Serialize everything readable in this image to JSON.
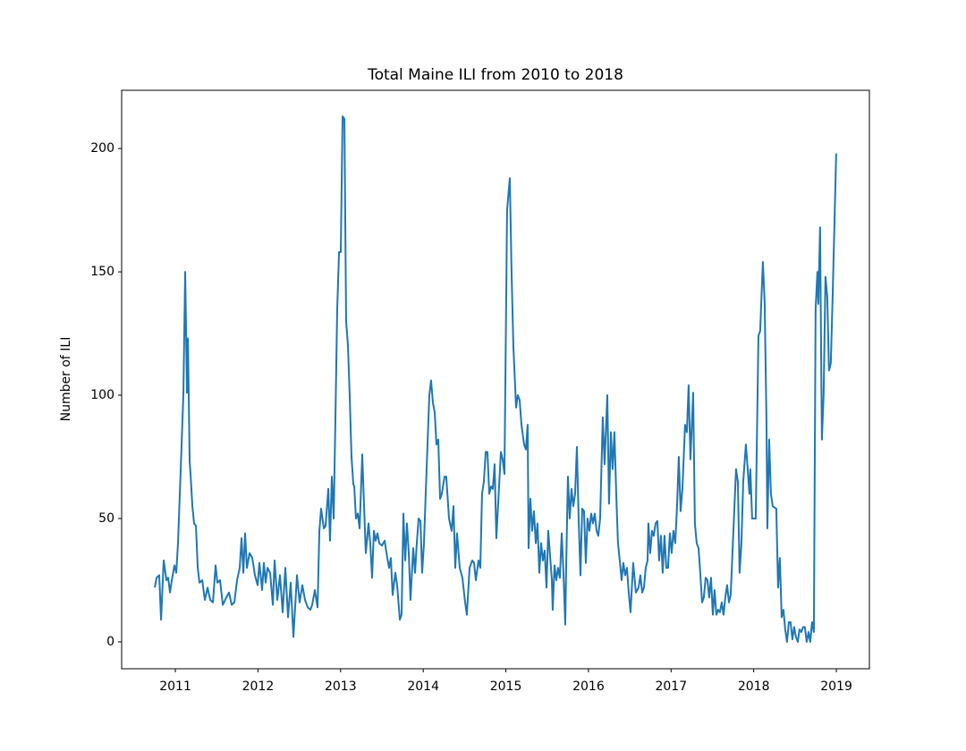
{
  "chart_data": {
    "type": "line",
    "title": "Total Maine ILI from 2010 to 2018",
    "y_label": "Number of ILI",
    "color": "#1f77b4",
    "grid": false,
    "xlim": [
      2010.35,
      2019.4
    ],
    "ylim": [
      -10.9,
      223.6
    ],
    "xticks": [
      2011,
      2012,
      2013,
      2014,
      2015,
      2016,
      2017,
      2018,
      2019
    ],
    "yticks": [
      0,
      50,
      100,
      150,
      200
    ],
    "x": [
      2010.751,
      2010.773,
      2010.805,
      2010.827,
      2010.859,
      2010.892,
      2010.913,
      2010.935,
      2010.957,
      2010.989,
      2011.011,
      2011.032,
      2011.065,
      2011.097,
      2011.119,
      2011.141,
      2011.152,
      2011.173,
      2011.184,
      2011.206,
      2011.227,
      2011.249,
      2011.271,
      2011.292,
      2011.325,
      2011.357,
      2011.39,
      2011.422,
      2011.455,
      2011.487,
      2011.509,
      2011.541,
      2011.574,
      2011.617,
      2011.649,
      2011.682,
      2011.714,
      2011.747,
      2011.779,
      2011.801,
      2011.823,
      2011.844,
      2011.866,
      2011.898,
      2011.931,
      2011.963,
      2011.996,
      2012.017,
      2012.05,
      2012.071,
      2012.093,
      2012.115,
      2012.147,
      2012.18,
      2012.201,
      2012.234,
      2012.266,
      2012.299,
      2012.331,
      2012.364,
      2012.396,
      2012.429,
      2012.472,
      2012.504,
      2012.537,
      2012.569,
      2012.602,
      2012.634,
      2012.656,
      2012.688,
      2012.721,
      2012.743,
      2012.764,
      2012.797,
      2012.818,
      2012.851,
      2012.872,
      2012.894,
      2012.916,
      2012.937,
      2012.959,
      2012.981,
      2013.002,
      2013.024,
      2013.046,
      2013.067,
      2013.089,
      2013.11,
      2013.132,
      2013.154,
      2013.165,
      2013.186,
      2013.208,
      2013.23,
      2013.262,
      2013.284,
      2013.305,
      2013.338,
      2013.359,
      2013.381,
      2013.403,
      2013.424,
      2013.446,
      2013.468,
      2013.5,
      2013.533,
      2013.565,
      2013.587,
      2013.608,
      2013.63,
      2013.662,
      2013.684,
      2013.717,
      2013.738,
      2013.76,
      2013.782,
      2013.803,
      2013.825,
      2013.846,
      2013.879,
      2013.901,
      2013.922,
      2013.944,
      2013.966,
      2013.987,
      2014.009,
      2014.03,
      2014.052,
      2014.074,
      2014.095,
      2014.117,
      2014.139,
      2014.16,
      2014.182,
      2014.204,
      2014.225,
      2014.258,
      2014.279,
      2014.312,
      2014.344,
      2014.366,
      2014.388,
      2014.409,
      2014.442,
      2014.474,
      2014.507,
      2014.528,
      2014.561,
      2014.593,
      2014.615,
      2014.637,
      2014.669,
      2014.691,
      2014.712,
      2014.734,
      2014.756,
      2014.777,
      2014.799,
      2014.821,
      2014.842,
      2014.864,
      2014.885,
      2014.907,
      2014.94,
      2014.961,
      2014.983,
      2015.015,
      2015.048,
      2015.069,
      2015.091,
      2015.124,
      2015.145,
      2015.167,
      2015.189,
      2015.221,
      2015.243,
      2015.264,
      2015.275,
      2015.297,
      2015.318,
      2015.34,
      2015.362,
      2015.383,
      2015.405,
      2015.427,
      2015.448,
      2015.47,
      2015.492,
      2015.513,
      2015.535,
      2015.557,
      2015.567,
      2015.589,
      2015.611,
      2015.632,
      2015.654,
      2015.676,
      2015.697,
      2015.719,
      2015.73,
      2015.751,
      2015.773,
      2015.795,
      2015.816,
      2015.838,
      2015.86,
      2015.881,
      2015.903,
      2015.924,
      2015.946,
      2015.968,
      2015.989,
      2016.011,
      2016.033,
      2016.054,
      2016.076,
      2016.098,
      2016.119,
      2016.141,
      2016.173,
      2016.195,
      2016.228,
      2016.249,
      2016.271,
      2016.292,
      2016.314,
      2016.336,
      2016.357,
      2016.379,
      2016.401,
      2016.422,
      2016.444,
      2016.466,
      2016.487,
      2016.509,
      2016.541,
      2016.574,
      2016.606,
      2016.628,
      2016.65,
      2016.671,
      2016.693,
      2016.715,
      2016.725,
      2016.747,
      2016.769,
      2016.79,
      2016.812,
      2016.834,
      2016.855,
      2016.877,
      2016.898,
      2016.92,
      2016.942,
      2016.963,
      2016.985,
      2017.007,
      2017.028,
      2017.05,
      2017.072,
      2017.093,
      2017.115,
      2017.137,
      2017.169,
      2017.191,
      2017.212,
      2017.234,
      2017.267,
      2017.288,
      2017.31,
      2017.332,
      2017.353,
      2017.375,
      2017.396,
      2017.418,
      2017.44,
      2017.461,
      2017.483,
      2017.505,
      2017.526,
      2017.548,
      2017.57,
      2017.591,
      2017.613,
      2017.635,
      2017.656,
      2017.678,
      2017.7,
      2017.721,
      2017.754,
      2017.786,
      2017.808,
      2017.829,
      2017.851,
      2017.873,
      2017.905,
      2017.927,
      2017.948,
      2017.959,
      2017.981,
      2018.024,
      2018.057,
      2018.078,
      2018.1,
      2018.111,
      2018.132,
      2018.154,
      2018.165,
      2018.187,
      2018.208,
      2018.23,
      2018.273,
      2018.295,
      2018.316,
      2018.338,
      2018.36,
      2018.381,
      2018.403,
      2018.425,
      2018.446,
      2018.468,
      2018.489,
      2018.511,
      2018.533,
      2018.554,
      2018.576,
      2018.598,
      2018.619,
      2018.641,
      2018.663,
      2018.684,
      2018.706,
      2018.728,
      2018.749,
      2018.771,
      2018.782,
      2018.803,
      2018.825,
      2018.846,
      2018.868,
      2018.89,
      2018.911,
      2018.933,
      2018.955,
      2018.976,
      2018.998
    ],
    "values": [
      22,
      26,
      27,
      9,
      33,
      25,
      26,
      20,
      25,
      31,
      28,
      40,
      70,
      100,
      150,
      101,
      123,
      73,
      68,
      55,
      48,
      47,
      30,
      24,
      25,
      17,
      22,
      17,
      16,
      31,
      24,
      25,
      15,
      18,
      20,
      15,
      16,
      25,
      30,
      42,
      28,
      44,
      30,
      36,
      34,
      27,
      23,
      32,
      21,
      32,
      24,
      30,
      28,
      15,
      33,
      17,
      27,
      12,
      30,
      10,
      24,
      2,
      27,
      16,
      23,
      17,
      14,
      13,
      15,
      21,
      14,
      45,
      54,
      46,
      47,
      62,
      41,
      67,
      50,
      90,
      135,
      158,
      158,
      213,
      212,
      130,
      120,
      100,
      75,
      64,
      63,
      50,
      52,
      46,
      76,
      55,
      36,
      48,
      40,
      26,
      45,
      41,
      44,
      40,
      39,
      41,
      34,
      30,
      34,
      19,
      28,
      23,
      9,
      11,
      52,
      33,
      48,
      36,
      17,
      38,
      28,
      40,
      50,
      49,
      28,
      40,
      60,
      80,
      100,
      106,
      97,
      93,
      80,
      82,
      58,
      60,
      67,
      67,
      50,
      45,
      55,
      30,
      44,
      30,
      26,
      16,
      11,
      30,
      33,
      32,
      25,
      33,
      30,
      60,
      65,
      77,
      77,
      60,
      63,
      62,
      72,
      42,
      56,
      77,
      74,
      68,
      175,
      188,
      150,
      120,
      95,
      100,
      98,
      88,
      80,
      78,
      88,
      38,
      58,
      45,
      53,
      40,
      48,
      28,
      40,
      33,
      37,
      22,
      45,
      35,
      25,
      13,
      31,
      25,
      30,
      26,
      44,
      28,
      7,
      30,
      67,
      50,
      62,
      55,
      60,
      79,
      50,
      27,
      54,
      53,
      32,
      50,
      45,
      52,
      48,
      52,
      45,
      43,
      50,
      91,
      72,
      100,
      56,
      85,
      70,
      85,
      60,
      40,
      33,
      25,
      32,
      27,
      30,
      20,
      12,
      32,
      20,
      22,
      27,
      20,
      22,
      30,
      33,
      48,
      36,
      45,
      43,
      48,
      49,
      33,
      43,
      28,
      43,
      30,
      30,
      44,
      36,
      45,
      40,
      55,
      75,
      53,
      62,
      88,
      85,
      104,
      74,
      101,
      48,
      40,
      38,
      28,
      16,
      18,
      26,
      25,
      18,
      26,
      11,
      21,
      11,
      13,
      12,
      16,
      11,
      18,
      23,
      16,
      19,
      45,
      70,
      65,
      28,
      40,
      65,
      80,
      70,
      60,
      70,
      50,
      50,
      124,
      126,
      145,
      154,
      138,
      90,
      46,
      82,
      60,
      55,
      54,
      22,
      34,
      10,
      13,
      5,
      0,
      8,
      8,
      1,
      6,
      2,
      0,
      5,
      4,
      6,
      6,
      0,
      4,
      0,
      8,
      4,
      135,
      150,
      137,
      168,
      82,
      100,
      148,
      140,
      110,
      113,
      140,
      168,
      198
    ]
  }
}
